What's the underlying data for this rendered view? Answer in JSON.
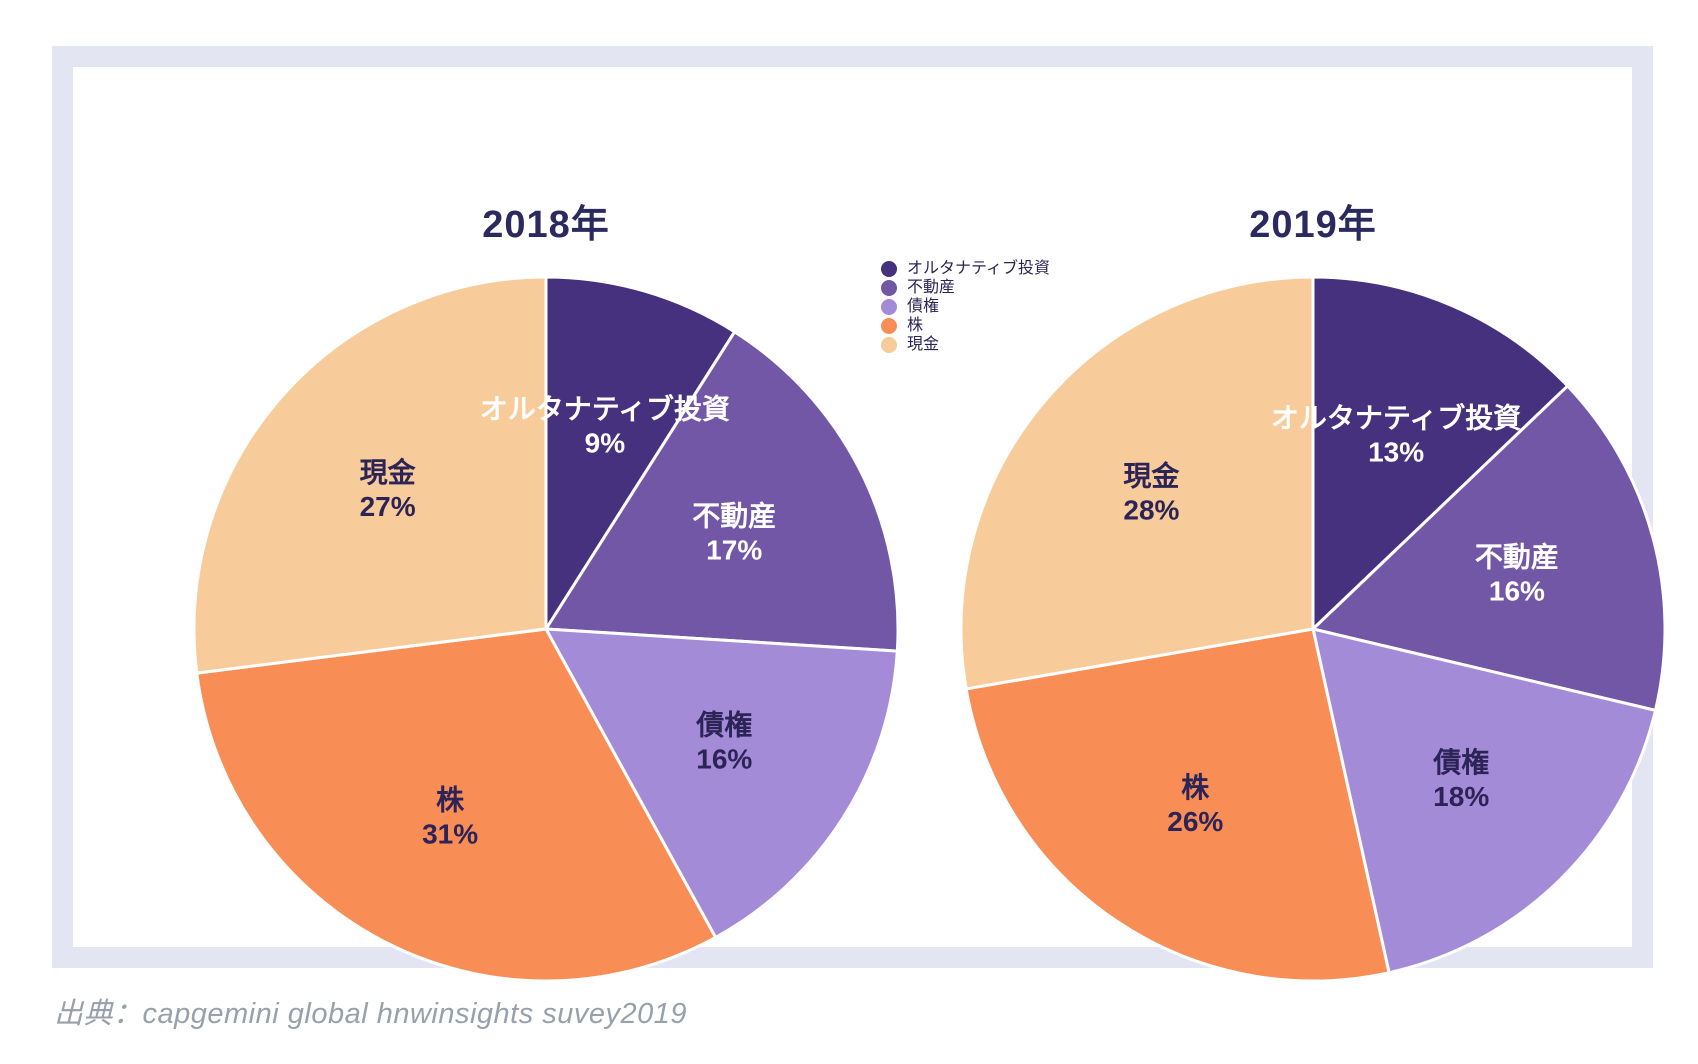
{
  "chart_data": [
    {
      "type": "pie",
      "title": "2018年",
      "labels": [
        "オルタナティブ投資",
        "不動産",
        "債権",
        "株",
        "現金"
      ],
      "values": [
        9,
        17,
        16,
        31,
        27
      ],
      "pct_labels": [
        "9%",
        "17%",
        "16%",
        "31%",
        "27%"
      ],
      "colors": [
        "#45317d",
        "#7257a7",
        "#a48bd8",
        "#f98d56",
        "#f7cc9a"
      ],
      "label_colors": [
        "#ffffff",
        "#ffffff",
        "#2c2457",
        "#2c2457",
        "#2c2457"
      ],
      "start": "top",
      "direction": "clockwise",
      "label_distance": 0.6,
      "unit": "%"
    },
    {
      "type": "pie",
      "title": "2019年",
      "labels": [
        "オルタナティブ投資",
        "不動産",
        "債権",
        "株",
        "現金"
      ],
      "values": [
        13,
        16,
        18,
        26,
        28
      ],
      "pct_labels": [
        "13%",
        "16%",
        "18%",
        "26%",
        "28%"
      ],
      "colors": [
        "#45317d",
        "#7257a7",
        "#a48bd8",
        "#f98d56",
        "#f7cc9a"
      ],
      "label_colors": [
        "#ffffff",
        "#ffffff",
        "#2c2457",
        "#2c2457",
        "#2c2457"
      ],
      "start": "top",
      "direction": "clockwise",
      "label_distance": 0.6,
      "unit": "%"
    }
  ],
  "legend": {
    "position": "top-center",
    "items": [
      {
        "label": "オルタナティブ投資",
        "color": "#45317d"
      },
      {
        "label": "不動産",
        "color": "#7257a7"
      },
      {
        "label": "債権",
        "color": "#a48bd8"
      },
      {
        "label": "株",
        "color": "#f98d56"
      },
      {
        "label": "現金",
        "color": "#f7cc9a"
      }
    ]
  },
  "source_note": "出典：capgemini global hnwinsights suvey2019",
  "frame_color": "#e3e5f2",
  "title_color": "#2b2a5e"
}
